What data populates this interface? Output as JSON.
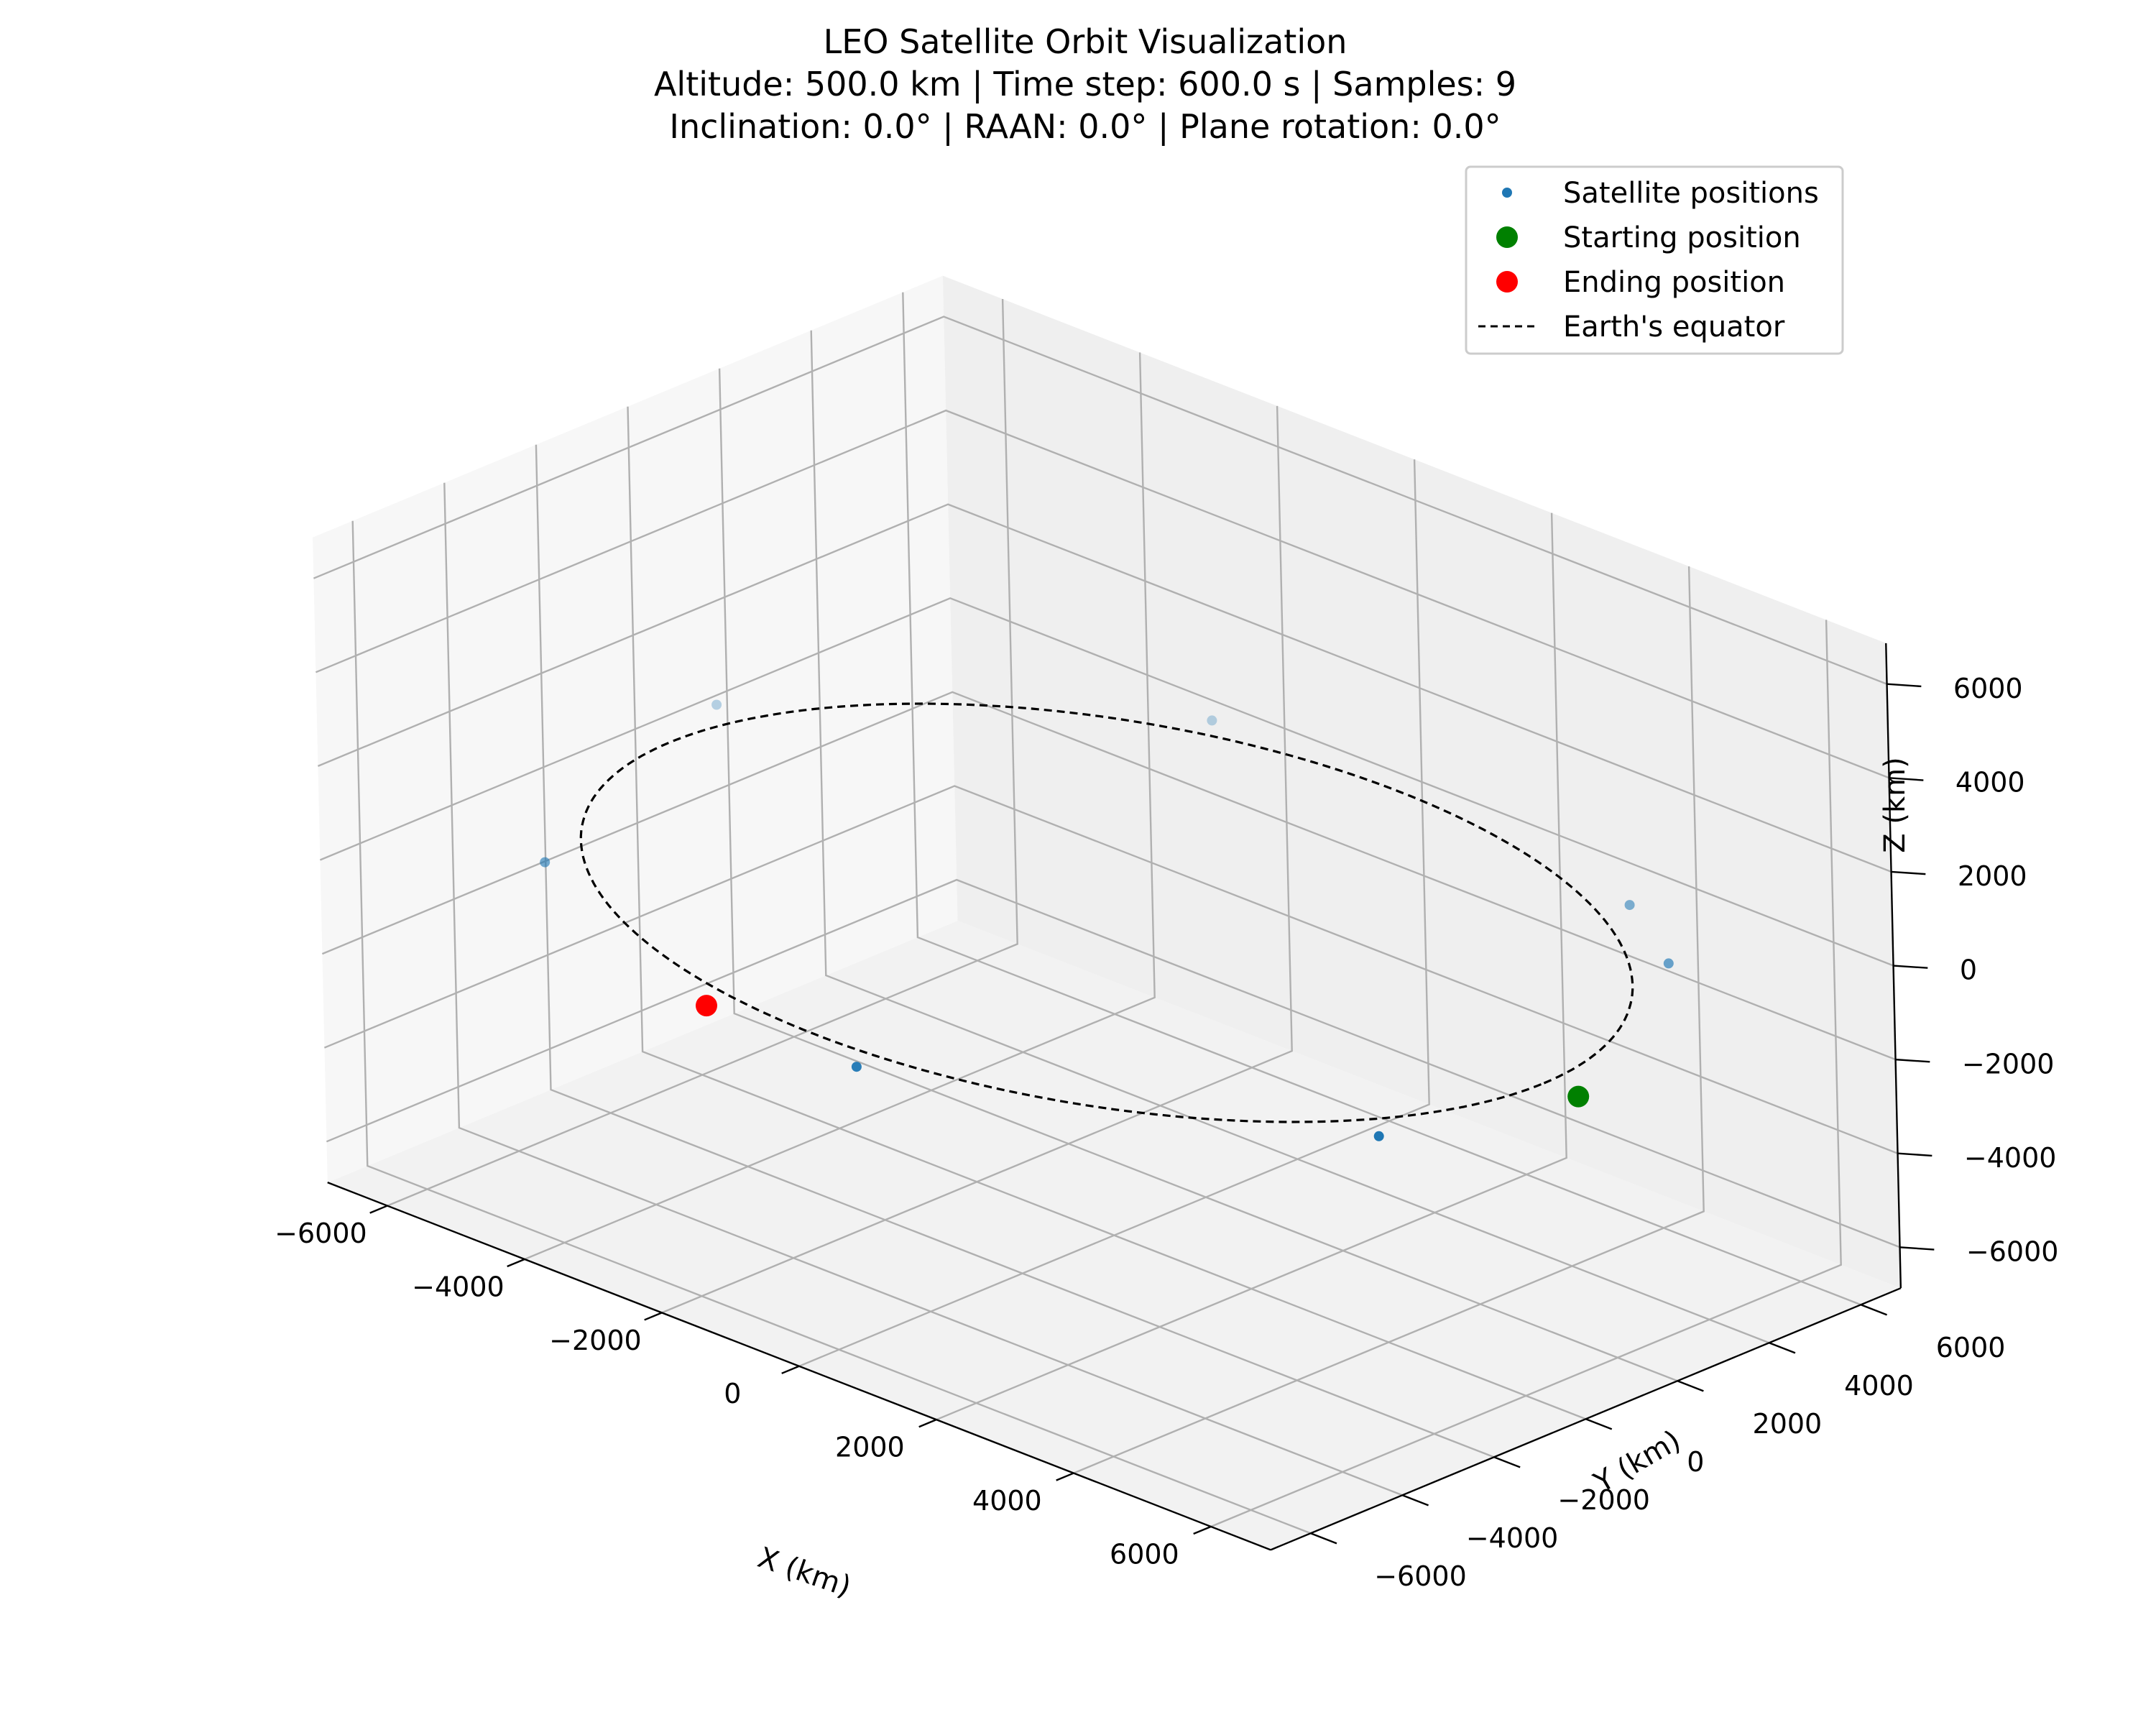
{
  "chart_data": {
    "type": "scatter",
    "title": "LEO Satellite Orbit Visualization",
    "subtitle_lines": [
      "Altitude: 500.0 km | Time step: 600.0 s | Samples: 9",
      "Inclination: 0.0° | RAAN: 0.0° | Plane rotation: 0.0°"
    ],
    "xlabel": "X (km)",
    "ylabel": "Y (km)",
    "zlabel": "Z (km)",
    "xlim": [
      -6871,
      6871
    ],
    "ylim": [
      -6871,
      6871
    ],
    "zlim": [
      -6871,
      6871
    ],
    "x_ticks": [
      "−6000",
      "−4000",
      "−2000",
      "0",
      "2000",
      "4000",
      "6000"
    ],
    "y_ticks": [
      "−6000",
      "−4000",
      "−2000",
      "0",
      "2000",
      "4000",
      "6000"
    ],
    "z_ticks": [
      "−6000",
      "−4000",
      "−2000",
      "0",
      "2000",
      "4000",
      "6000"
    ],
    "grid": true,
    "legend_position": "top-right",
    "series": [
      {
        "name": "Satellite positions",
        "color": "#1f77b4",
        "points": [
          {
            "x": 6871,
            "y": 0,
            "z": 0
          },
          {
            "x": 3790,
            "y": 5731,
            "z": 0
          },
          {
            "x": -2690,
            "y": 6322,
            "z": 0
          },
          {
            "x": -6700,
            "y": 1520,
            "z": 0
          },
          {
            "x": -5140,
            "y": -4560,
            "z": 0
          },
          {
            "x": 905,
            "y": -6811,
            "z": 0
          },
          {
            "x": 6090,
            "y": -3180,
            "z": 0
          },
          {
            "x": 5140,
            "y": 4560,
            "z": 0
          },
          {
            "x": -1330,
            "y": -6740,
            "z": 0
          }
        ]
      },
      {
        "name": "Starting position",
        "color": "#008000",
        "points": [
          {
            "x": 6871,
            "y": 0,
            "z": 0
          }
        ]
      },
      {
        "name": "Ending position",
        "color": "#ff0000",
        "points": [
          {
            "x": -1330,
            "y": -6740,
            "z": 0
          }
        ]
      },
      {
        "name": "Earth's equator",
        "color": "#000000",
        "style": "dashed",
        "radius": 6371
      }
    ]
  }
}
